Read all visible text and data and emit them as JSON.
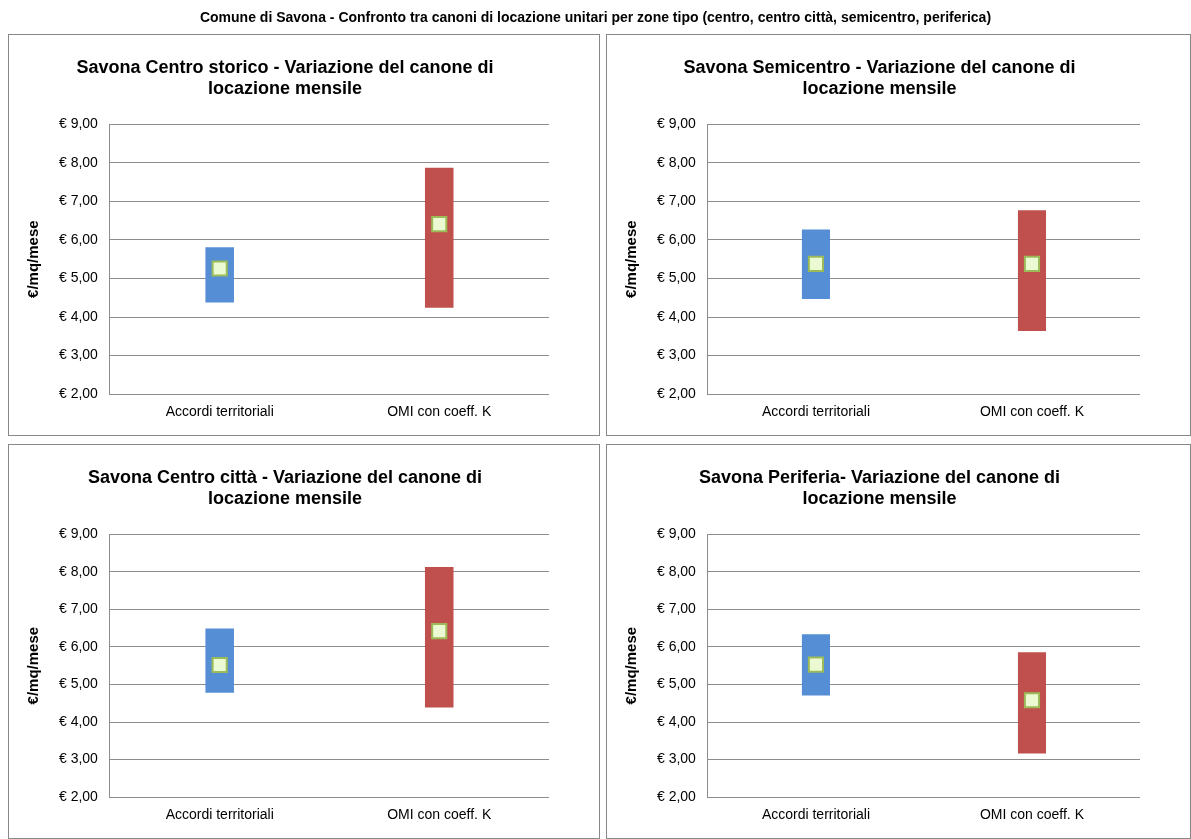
{
  "chart_data": [
    {
      "type": "bar",
      "title": "Savona Centro storico - Variazione del canone di locazione mensile",
      "annotations": [
        "Comune di Savona - Confronto tra canoni di locazione unitari per zone tipo (centro, centro città, semicentro, periferica)"
      ],
      "ylabel": "€/mq/mese",
      "categories": [
        "Accordi territoriali",
        "OMI con coeff. K"
      ],
      "ylim": [
        2,
        9
      ],
      "yticks": [
        {
          "value": 2,
          "label": "€ 2,00"
        },
        {
          "value": 3,
          "label": "€ 3,00"
        },
        {
          "value": 4,
          "label": "€ 4,00"
        },
        {
          "value": 5,
          "label": "€ 5,00"
        },
        {
          "value": 6,
          "label": "€ 6,00"
        },
        {
          "value": 7,
          "label": "€ 7,00"
        },
        {
          "value": 8,
          "label": "€ 8,00"
        },
        {
          "value": 9,
          "label": "€ 9,00"
        }
      ],
      "grid": "y",
      "legend": false,
      "series": [
        {
          "colors": [
            "#558ed5",
            "#c0504d"
          ],
          "base": [
            4.38,
            4.24
          ],
          "values": [
            1.43,
            3.63
          ]
        },
        {
          "type": "scatter",
          "color": "#9bbb59",
          "marker": "square",
          "x": [
            "Accordi territoriali",
            "OMI con coeff. K"
          ],
          "values": [
            5.26,
            6.41
          ]
        }
      ]
    },
    {
      "type": "bar",
      "title": "Savona Semicentro - Variazione del canone di locazione mensile",
      "ylabel": "€/mq/mese",
      "categories": [
        "Accordi territoriali",
        "OMI con coeff. K"
      ],
      "ylim": [
        2,
        9
      ],
      "yticks": [
        {
          "value": 2,
          "label": "€ 2,00"
        },
        {
          "value": 3,
          "label": "€ 3,00"
        },
        {
          "value": 4,
          "label": "€ 4,00"
        },
        {
          "value": 5,
          "label": "€ 5,00"
        },
        {
          "value": 6,
          "label": "€ 6,00"
        },
        {
          "value": 7,
          "label": "€ 7,00"
        },
        {
          "value": 8,
          "label": "€ 8,00"
        },
        {
          "value": 9,
          "label": "€ 9,00"
        }
      ],
      "grid": "y",
      "legend": false,
      "series": [
        {
          "colors": [
            "#558ed5",
            "#c0504d"
          ],
          "base": [
            4.47,
            3.64
          ],
          "values": [
            1.8,
            3.13
          ]
        },
        {
          "type": "scatter",
          "color": "#9bbb59",
          "marker": "square",
          "x": [
            "Accordi territoriali",
            "OMI con coeff. K"
          ],
          "values": [
            5.38,
            5.38
          ]
        }
      ]
    },
    {
      "type": "bar",
      "title": "Savona Centro città - Variazione del canone di locazione mensile",
      "ylabel": "€/mq/mese",
      "categories": [
        "Accordi territoriali",
        "OMI con coeff. K"
      ],
      "ylim": [
        2,
        9
      ],
      "yticks": [
        {
          "value": 2,
          "label": "€ 2,00"
        },
        {
          "value": 3,
          "label": "€ 3,00"
        },
        {
          "value": 4,
          "label": "€ 4,00"
        },
        {
          "value": 5,
          "label": "€ 5,00"
        },
        {
          "value": 6,
          "label": "€ 6,00"
        },
        {
          "value": 7,
          "label": "€ 7,00"
        },
        {
          "value": 8,
          "label": "€ 8,00"
        },
        {
          "value": 9,
          "label": "€ 9,00"
        }
      ],
      "grid": "y",
      "legend": false,
      "series": [
        {
          "colors": [
            "#558ed5",
            "#c0504d"
          ],
          "base": [
            4.78,
            4.39
          ],
          "values": [
            1.71,
            3.74
          ]
        },
        {
          "type": "scatter",
          "color": "#9bbb59",
          "marker": "square",
          "x": [
            "Accordi territoriali",
            "OMI con coeff. K"
          ],
          "values": [
            5.52,
            6.42
          ]
        }
      ]
    },
    {
      "type": "bar",
      "title": "Savona Periferia- Variazione del canone di locazione mensile",
      "ylabel": "€/mq/mese",
      "categories": [
        "Accordi territoriali",
        "OMI con coeff. K"
      ],
      "ylim": [
        2,
        9
      ],
      "yticks": [
        {
          "value": 2,
          "label": "€ 2,00"
        },
        {
          "value": 3,
          "label": "€ 3,00"
        },
        {
          "value": 4,
          "label": "€ 4,00"
        },
        {
          "value": 5,
          "label": "€ 5,00"
        },
        {
          "value": 6,
          "label": "€ 6,00"
        },
        {
          "value": 7,
          "label": "€ 7,00"
        },
        {
          "value": 8,
          "label": "€ 8,00"
        },
        {
          "value": 9,
          "label": "€ 9,00"
        }
      ],
      "grid": "y",
      "legend": false,
      "series": [
        {
          "colors": [
            "#558ed5",
            "#c0504d"
          ],
          "base": [
            4.71,
            3.16
          ],
          "values": [
            1.63,
            2.7
          ]
        },
        {
          "type": "scatter",
          "color": "#9bbb59",
          "marker": "square",
          "x": [
            "Accordi territoriali",
            "OMI con coeff. K"
          ],
          "values": [
            5.53,
            4.58
          ]
        }
      ]
    }
  ]
}
